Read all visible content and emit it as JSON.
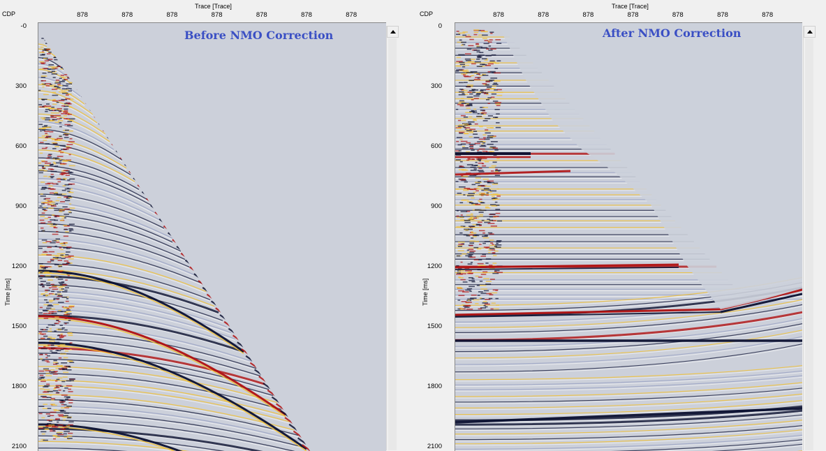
{
  "left": {
    "title": "Before NMO Correction",
    "cdp_label": "CDP",
    "trace_axis_label": "Trace [Trace]",
    "trace_ticks": [
      "878",
      "878",
      "878",
      "878",
      "878",
      "878",
      "878"
    ],
    "time_axis_label": "Time [ms]",
    "time_ticks": [
      "-0",
      "300",
      "600",
      "900",
      "1200",
      "1500",
      "1800",
      "2100"
    ]
  },
  "right": {
    "title": "After NMO Correction",
    "cdp_label": "CDP",
    "trace_axis_label": "Trace [Trace]",
    "trace_ticks": [
      "878",
      "878",
      "878",
      "878",
      "878",
      "878",
      "878"
    ],
    "time_axis_label": "Time [ms]",
    "time_ticks": [
      "0",
      "300",
      "600",
      "900",
      "1200",
      "1500",
      "1800",
      "2100"
    ]
  },
  "colors": {
    "title": "#3a4fc4",
    "background": "#ccd0da",
    "trough": "#0b1030",
    "peak_red": "#b01010",
    "peak_yellow": "#f3c030"
  }
}
